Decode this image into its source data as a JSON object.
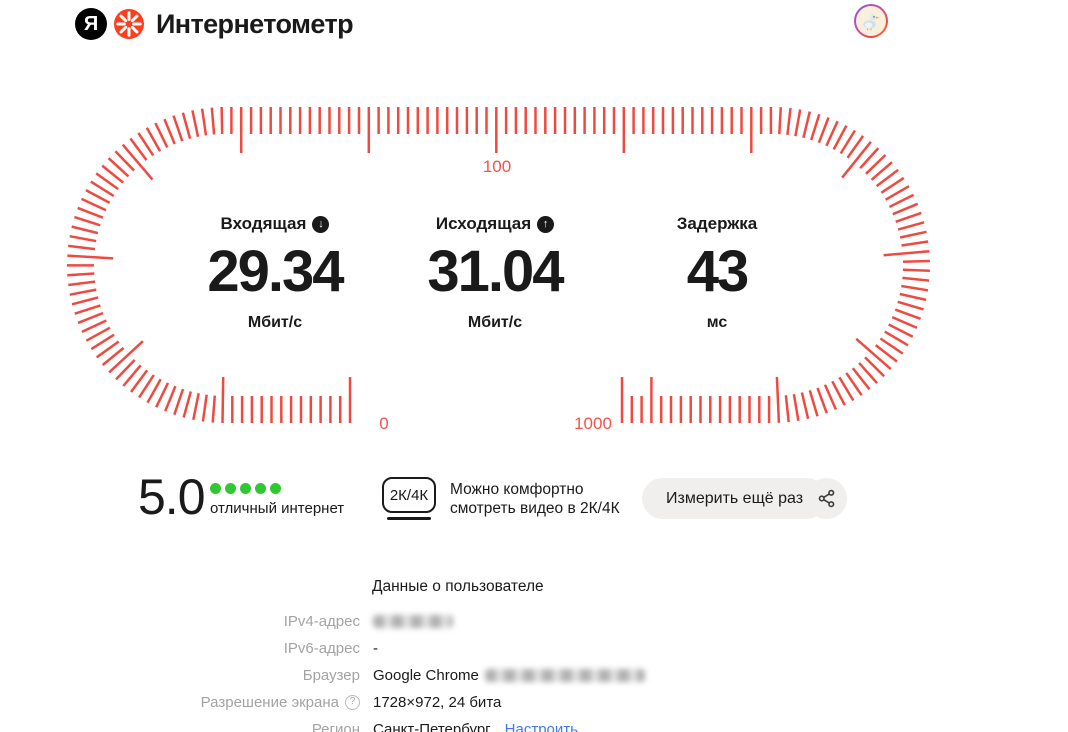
{
  "colors": {
    "accent_red": "#fb3f1d",
    "gauge_tick": "#ef4a41",
    "gauge_label_red": "#f4524c",
    "score_green": "#2fc832",
    "link_blue": "#3b77f6",
    "button_gray": "#f0efed",
    "text_black": "#1a1a1a",
    "label_gray": "#a3a3a1"
  },
  "header": {
    "logo_letter": "Я",
    "title": "Интернетометр"
  },
  "gauge": {
    "scale_labels": {
      "start": "0",
      "top": "100",
      "end": "1000"
    },
    "metrics": [
      {
        "label": "Входящая",
        "icon_glyph": "↓",
        "value": "29.34",
        "unit": "Мбит/с"
      },
      {
        "label": "Исходящая",
        "icon_glyph": "↑",
        "value": "31.04",
        "unit": "Мбит/с"
      },
      {
        "label": "Задержка",
        "value": "43",
        "unit": "мс"
      }
    ]
  },
  "results": {
    "score": "5.0",
    "score_dots": 5,
    "score_caption": "отличный интернет",
    "quality_badge": "2К/4К",
    "quality_line1": "Можно комфортно",
    "quality_line2": "смотреть видео в 2К/4К",
    "measure_again": "Измерить ещё раз"
  },
  "user_data": {
    "heading": "Данные о пользователе",
    "rows": {
      "ipv4": {
        "label": "IPv4-адрес",
        "value_redacted": true
      },
      "ipv6": {
        "label": "IPv6-адрес",
        "value": "-"
      },
      "browser": {
        "label": "Браузер",
        "value": "Google Chrome",
        "version_redacted": true
      },
      "screen": {
        "label": "Разрешение экрана",
        "help_glyph": "?",
        "value": "1728×972, 24 бита"
      },
      "region": {
        "label": "Регион",
        "value": "Санкт-Петербург",
        "link": "Настроить"
      }
    }
  }
}
